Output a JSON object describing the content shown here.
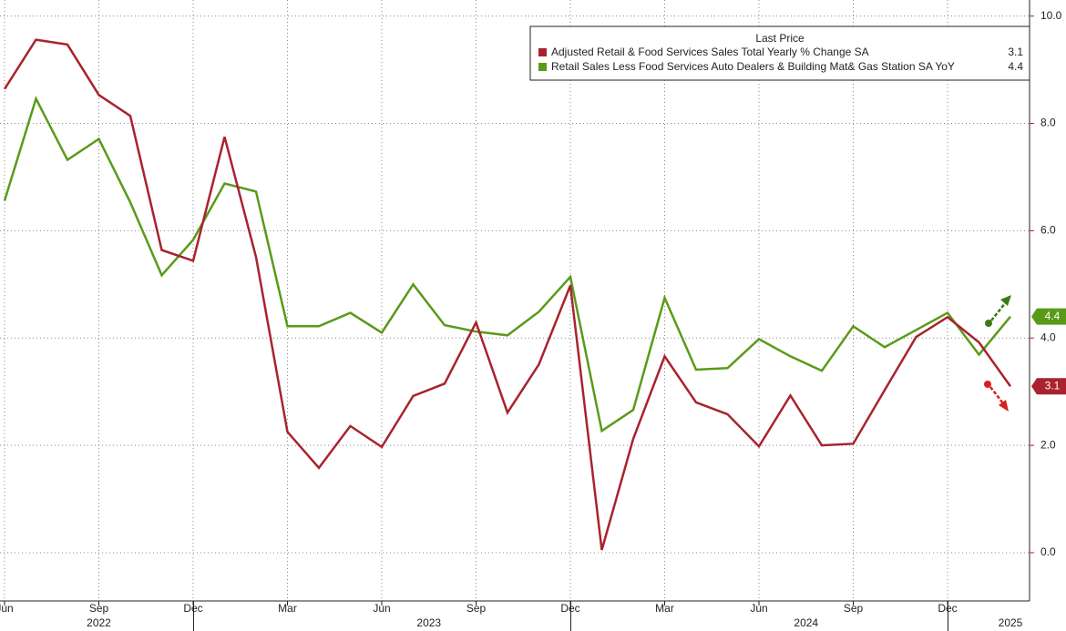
{
  "chart_data": {
    "type": "line",
    "categories": [
      "Jun",
      null,
      null,
      "Sep",
      null,
      null,
      "Dec",
      null,
      null,
      "Mar",
      null,
      null,
      "Jun",
      null,
      null,
      "Sep",
      null,
      null,
      "Dec",
      null,
      null,
      "Mar",
      null,
      null,
      "Jun",
      null,
      null,
      "Sep",
      null,
      null,
      "Dec",
      null,
      null
    ],
    "years": [
      "2022",
      "2023",
      "2024",
      "2025"
    ],
    "legend_title": "Last Price",
    "series": [
      {
        "name": "Adjusted Retail & Food Services Sales Total Yearly % Change SA",
        "color": "#a8232e",
        "values": [
          8.64,
          9.56,
          9.47,
          8.53,
          8.14,
          5.64,
          5.44,
          7.75,
          5.51,
          2.25,
          1.58,
          2.36,
          1.97,
          2.92,
          3.15,
          4.29,
          2.61,
          3.51,
          4.98,
          0.05,
          2.12,
          3.66,
          2.8,
          2.58,
          1.98,
          2.93,
          2.0,
          2.03,
          3.03,
          4.02,
          4.39,
          3.92,
          3.1
        ]
      },
      {
        "name": "Retail Sales Less Food Services Auto Dealers & Building Mat& Gas Station SA YoY",
        "color": "#5a9a1a",
        "values": [
          6.56,
          8.46,
          7.32,
          7.71,
          6.53,
          5.17,
          5.83,
          6.88,
          6.73,
          4.22,
          4.22,
          4.47,
          4.1,
          5.0,
          4.24,
          4.12,
          4.05,
          4.49,
          5.14,
          2.27,
          2.66,
          4.75,
          3.41,
          3.44,
          3.98,
          3.66,
          3.39,
          4.22,
          3.83,
          4.15,
          4.47,
          3.69,
          4.4
        ]
      }
    ],
    "ylim": [
      -0.9,
      10.3
    ],
    "yticks": [
      {
        "value": 0,
        "label": "0.0"
      },
      {
        "value": 2,
        "label": "2.0"
      },
      {
        "value": 4,
        "label": "4.0"
      },
      {
        "value": 6,
        "label": "6.0"
      },
      {
        "value": 8,
        "label": "8.0"
      },
      {
        "value": 10,
        "label": "10.0"
      }
    ],
    "grid": true
  }
}
